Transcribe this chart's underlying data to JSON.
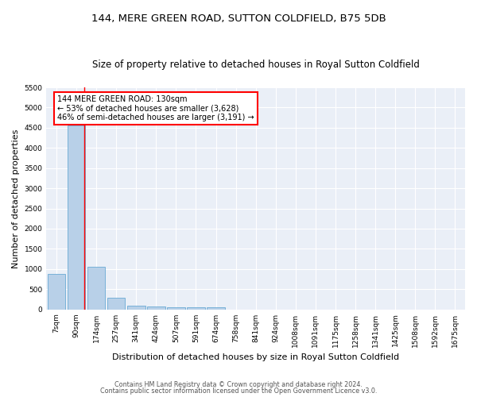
{
  "title1": "144, MERE GREEN ROAD, SUTTON COLDFIELD, B75 5DB",
  "title2": "Size of property relative to detached houses in Royal Sutton Coldfield",
  "xlabel": "Distribution of detached houses by size in Royal Sutton Coldfield",
  "ylabel": "Number of detached properties",
  "footer1": "Contains HM Land Registry data © Crown copyright and database right 2024.",
  "footer2": "Contains public sector information licensed under the Open Government Licence v3.0.",
  "bin_labels": [
    "7sqm",
    "90sqm",
    "174sqm",
    "257sqm",
    "341sqm",
    "424sqm",
    "507sqm",
    "591sqm",
    "674sqm",
    "758sqm",
    "841sqm",
    "924sqm",
    "1008sqm",
    "1091sqm",
    "1175sqm",
    "1258sqm",
    "1341sqm",
    "1425sqm",
    "1508sqm",
    "1592sqm",
    "1675sqm"
  ],
  "bar_values": [
    880,
    4560,
    1060,
    290,
    85,
    75,
    60,
    55,
    45,
    0,
    0,
    0,
    0,
    0,
    0,
    0,
    0,
    0,
    0,
    0,
    0
  ],
  "bar_color": "#b8d0e8",
  "bar_edge_color": "#6aaad4",
  "red_line_x": 1.38,
  "annotation_text": "144 MERE GREEN ROAD: 130sqm\n← 53% of detached houses are smaller (3,628)\n46% of semi-detached houses are larger (3,191) →",
  "annotation_box_color": "white",
  "annotation_box_edge_color": "red",
  "ylim": [
    0,
    5500
  ],
  "yticks": [
    0,
    500,
    1000,
    1500,
    2000,
    2500,
    3000,
    3500,
    4000,
    4500,
    5000,
    5500
  ],
  "bg_color": "#eaeff7",
  "grid_color": "white",
  "title1_fontsize": 9.5,
  "title2_fontsize": 8.5,
  "ylabel_fontsize": 8,
  "xlabel_fontsize": 8,
  "tick_fontsize": 6.5,
  "annot_fontsize": 7,
  "footer_fontsize": 5.8
}
